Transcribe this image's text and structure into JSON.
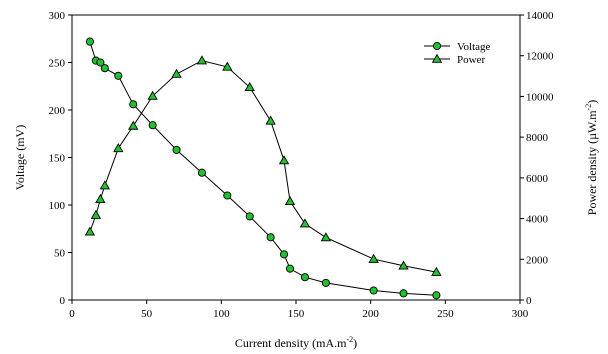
{
  "chart_data": {
    "type": "line",
    "xlabel": {
      "main": "Current density (mA.m",
      "sup": "-2",
      "tail": ")"
    },
    "ylabel": "Voltage (mV)",
    "y2label": {
      "main": "Power density (µW.m",
      "sup": "-2",
      "tail": ")"
    },
    "xlim": [
      0,
      300
    ],
    "ylim": [
      0,
      300
    ],
    "y2lim": [
      0,
      14000
    ],
    "xticks": [
      0,
      50,
      100,
      150,
      200,
      250,
      300
    ],
    "yticks": [
      0,
      50,
      100,
      150,
      200,
      250,
      300
    ],
    "y2ticks": [
      0,
      2000,
      4000,
      6000,
      8000,
      10000,
      12000,
      14000
    ],
    "grid": false,
    "legend_position": "top-right",
    "series": [
      {
        "name": "Voltage",
        "axis": "left",
        "marker": "circle",
        "color": "#22c22e",
        "x": [
          12,
          16,
          19,
          22,
          31,
          41,
          54,
          70,
          87,
          104,
          119,
          133,
          142,
          146,
          156,
          170,
          202,
          222,
          244
        ],
        "y": [
          272,
          252,
          250,
          244,
          236,
          206,
          184,
          158,
          134,
          110,
          88,
          66,
          48,
          33,
          24,
          18,
          10,
          7,
          5
        ]
      },
      {
        "name": "Power",
        "axis": "right",
        "marker": "triangle",
        "color": "#22c22e",
        "x": [
          12,
          16,
          19,
          22,
          31,
          41,
          54,
          70,
          87,
          104,
          119,
          133,
          142,
          146,
          156,
          170,
          202,
          222,
          244
        ],
        "y": [
          3350,
          4170,
          4950,
          5620,
          7450,
          8550,
          10020,
          11100,
          11760,
          11450,
          10450,
          8800,
          6850,
          4850,
          3750,
          3070,
          2010,
          1680,
          1370
        ]
      }
    ]
  }
}
